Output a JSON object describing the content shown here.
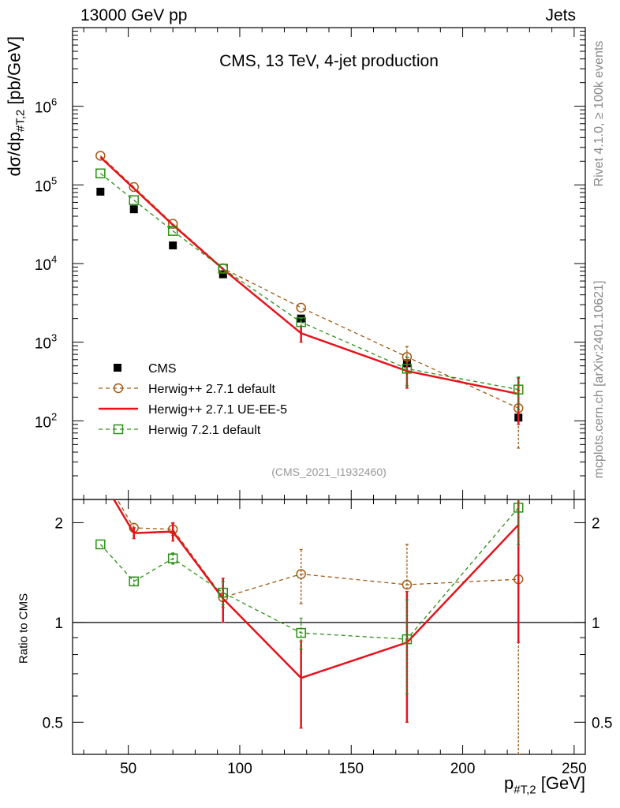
{
  "header": {
    "left": "13000 GeV pp",
    "right": "Jets"
  },
  "side_labels": {
    "rivet": "Rivet 4.1.0, ≥ 100k events",
    "mcplots": "mcplots.cern.ch [arXiv:2401.10621]"
  },
  "chart_data": {
    "type": "line",
    "title": "CMS, 13 TeV, 4-jet production",
    "reference": "(CMS_2021_I1932460)",
    "xlabel": "p",
    "xlabel_sub": "#T,2",
    "xlabel_unit": " [GeV]",
    "ylabel": "dσ/dp",
    "ylabel_sub": "#T,2",
    "ylabel_unit": " [pb/GeV]",
    "ratio_ylabel": "Ratio to CMS",
    "xlim": [
      25,
      255
    ],
    "ylim": [
      10,
      10000000
    ],
    "ratio_ylim": [
      0.4,
      2.35
    ],
    "x_ticks": [
      50,
      100,
      150,
      200,
      250
    ],
    "x_tick_labels": [
      "50",
      "100",
      "150",
      "200",
      "250"
    ],
    "y_ticks": [
      100,
      1000,
      10000,
      100000,
      1000000
    ],
    "y_tick_labels": [
      {
        "base": "10",
        "exp": "2"
      },
      {
        "base": "10",
        "exp": "3"
      },
      {
        "base": "10",
        "exp": "4"
      },
      {
        "base": "10",
        "exp": "5"
      },
      {
        "base": "10",
        "exp": "6"
      }
    ],
    "ratio_ticks": [
      0.5,
      1,
      2
    ],
    "ratio_tick_labels": [
      "0.5",
      "1",
      "2"
    ],
    "legend_position": "lower-left",
    "series": [
      {
        "name": "CMS",
        "style": "data",
        "color": "#000000",
        "x": [
          37.5,
          52.5,
          70,
          92.5,
          127.5,
          175,
          225
        ],
        "y": [
          82000,
          49000,
          17000,
          7300,
          2000,
          540,
          110
        ],
        "ratio": [
          1,
          1,
          1,
          1,
          1,
          1,
          1
        ]
      },
      {
        "name": "Herwig++ 2.7.1 default",
        "style": "dashed-circle",
        "color": "#a05a14",
        "x": [
          37.5,
          52.5,
          70,
          92.5,
          127.5,
          175,
          225
        ],
        "y": [
          235000,
          94000,
          32000,
          8700,
          2750,
          650,
          145
        ],
        "y_err": [
          0,
          0,
          0,
          0,
          0,
          230,
          100
        ],
        "ratio": [
          2.87,
          1.93,
          1.91,
          1.19,
          1.4,
          1.3,
          1.35
        ],
        "ratio_err": [
          0,
          0.06,
          0.08,
          0.08,
          0.26,
          0.42,
          1.0
        ]
      },
      {
        "name": "Herwig++ 2.7.1 UE-EE-5",
        "style": "solid",
        "color": "#e8121c",
        "x": [
          37.5,
          52.5,
          70,
          92.5,
          127.5,
          175,
          225
        ],
        "y": [
          225000,
          90000,
          31000,
          8500,
          1300,
          430,
          220
        ],
        "y_err": [
          0,
          0,
          0,
          0,
          300,
          170,
          130
        ],
        "ratio": [
          2.75,
          1.86,
          1.88,
          1.18,
          0.68,
          0.87,
          1.97
        ],
        "ratio_err": [
          0,
          0.07,
          0.12,
          0.18,
          0.2,
          0.37,
          1.1
        ]
      },
      {
        "name": "Herwig 7.2.1 default",
        "style": "dashed-square",
        "color": "#2a8f14",
        "x": [
          37.5,
          52.5,
          70,
          92.5,
          127.5,
          175,
          225
        ],
        "y": [
          140000,
          64000,
          26000,
          8600,
          1800,
          460,
          250
        ],
        "y_err": [
          0,
          0,
          0,
          0,
          200,
          180,
          110
        ],
        "ratio": [
          1.72,
          1.33,
          1.56,
          1.23,
          0.93,
          0.89,
          2.22
        ],
        "ratio_err": [
          0,
          0.04,
          0.06,
          0.1,
          0.1,
          0.28,
          0.5
        ]
      }
    ]
  }
}
